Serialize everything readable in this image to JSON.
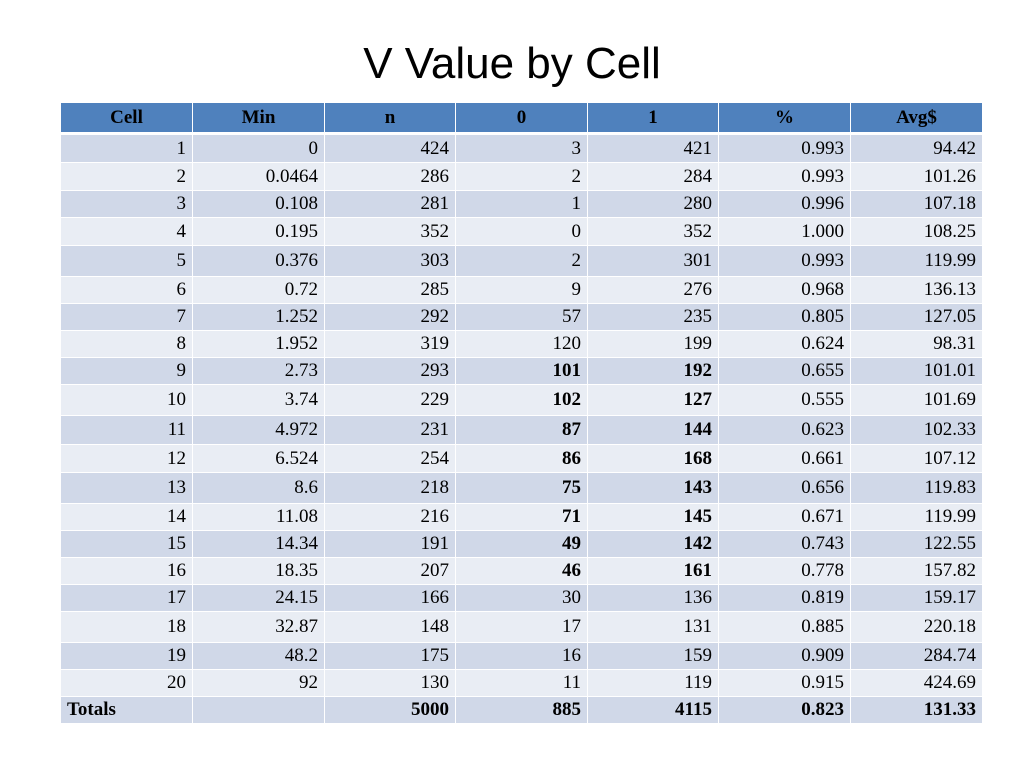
{
  "title": "V Value by Cell",
  "headers": [
    "Cell",
    "Min",
    "n",
    "0",
    "1",
    "%",
    "Avg$"
  ],
  "rows": [
    [
      "1",
      "0",
      "424",
      "3",
      "421",
      "0.993",
      "94.42"
    ],
    [
      "2",
      "0.0464",
      "286",
      "2",
      "284",
      "0.993",
      "101.26"
    ],
    [
      "3",
      "0.108",
      "281",
      "1",
      "280",
      "0.996",
      "107.18"
    ],
    [
      "4",
      "0.195",
      "352",
      "0",
      "352",
      "1.000",
      "108.25"
    ],
    [
      "5",
      "0.376",
      "303",
      "2",
      "301",
      "0.993",
      "119.99"
    ],
    [
      "6",
      "0.72",
      "285",
      "9",
      "276",
      "0.968",
      "136.13"
    ],
    [
      "7",
      "1.252",
      "292",
      "57",
      "235",
      "0.805",
      "127.05"
    ],
    [
      "8",
      "1.952",
      "319",
      "120",
      "199",
      "0.624",
      "98.31"
    ],
    [
      "9",
      "2.73",
      "293",
      "101",
      "192",
      "0.655",
      "101.01"
    ],
    [
      "10",
      "3.74",
      "229",
      "102",
      "127",
      "0.555",
      "101.69"
    ],
    [
      "11",
      "4.972",
      "231",
      "87",
      "144",
      "0.623",
      "102.33"
    ],
    [
      "12",
      "6.524",
      "254",
      "86",
      "168",
      "0.661",
      "107.12"
    ],
    [
      "13",
      "8.6",
      "218",
      "75",
      "143",
      "0.656",
      "119.83"
    ],
    [
      "14",
      "11.08",
      "216",
      "71",
      "145",
      "0.671",
      "119.99"
    ],
    [
      "15",
      "14.34",
      "191",
      "49",
      "142",
      "0.743",
      "122.55"
    ],
    [
      "16",
      "18.35",
      "207",
      "46",
      "161",
      "0.778",
      "157.82"
    ],
    [
      "17",
      "24.15",
      "166",
      "30",
      "136",
      "0.819",
      "159.17"
    ],
    [
      "18",
      "32.87",
      "148",
      "17",
      "131",
      "0.885",
      "220.18"
    ],
    [
      "19",
      "48.2",
      "175",
      "16",
      "159",
      "0.909",
      "284.74"
    ],
    [
      "20",
      "92",
      "130",
      "11",
      "119",
      "0.915",
      "424.69"
    ]
  ],
  "bold_rows": [
    8,
    9,
    10,
    11,
    12,
    13,
    14,
    15
  ],
  "totals": [
    "Totals",
    "",
    "5000",
    "885",
    "4115",
    "0.823",
    "131.33"
  ],
  "colors": {
    "header_bg": "#4f81bd",
    "row_dark": "#d0d8e8",
    "row_light": "#e9edf4"
  }
}
